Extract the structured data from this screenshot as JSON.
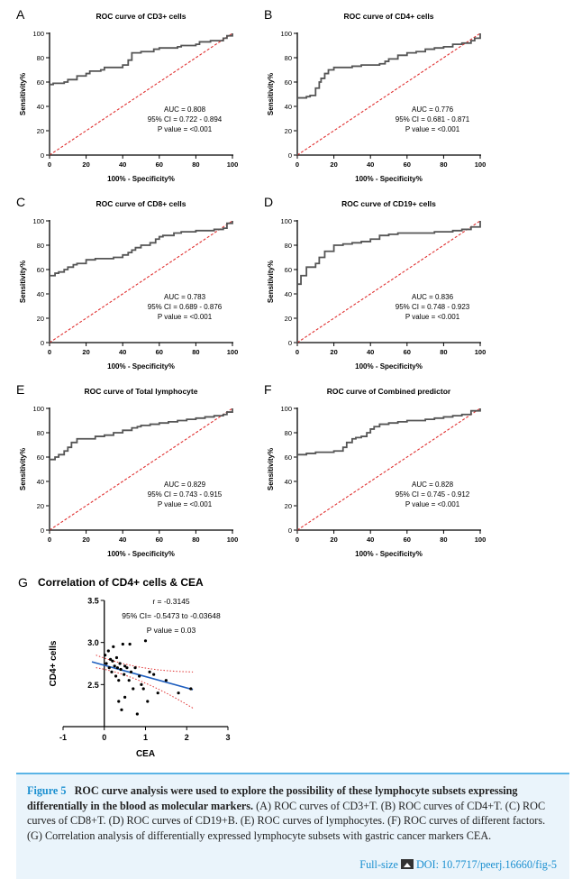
{
  "figure": {
    "panels": [
      {
        "letter": "A",
        "title": "ROC curve of CD3+ cells",
        "auc": "AUC = 0.808",
        "ci": "95% CI = 0.722 - 0.894",
        "p": "P value = <0.001"
      },
      {
        "letter": "B",
        "title": "ROC curve of CD4+ cells",
        "auc": "AUC = 0.776",
        "ci": "95% CI = 0.681 - 0.871",
        "p": "P value = <0.001"
      },
      {
        "letter": "C",
        "title": "ROC curve of CD8+ cells",
        "auc": "AUC = 0.783",
        "ci": "95% CI = 0.689 - 0.876",
        "p": "P value = <0.001"
      },
      {
        "letter": "D",
        "title": "ROC curve of CD19+ cells",
        "auc": "AUC = 0.836",
        "ci": "95% CI = 0.748 - 0.923",
        "p": "P value = <0.001"
      },
      {
        "letter": "E",
        "title": "ROC curve of Total lymphocyte",
        "auc": "AUC = 0.829",
        "ci": "95% CI = 0.743 - 0.915",
        "p": "P value = <0.001"
      },
      {
        "letter": "F",
        "title": "ROC curve of Combined predictor",
        "auc": "AUC = 0.828",
        "ci": "95% CI = 0.745 - 0.912",
        "p": "P value = <0.001"
      }
    ],
    "roc_xlabel": "100% - Specificity%",
    "roc_ylabel": "Sensitivity%",
    "g_panel": {
      "letter": "G",
      "title": "Correlation of CD4+ cells & CEA",
      "xlabel": "CEA",
      "ylabel": "CD4+ cells",
      "r": "r = -0.3145",
      "ci": "95% CI= -0.5473 to -0.03648",
      "p": "P value = 0.03"
    }
  },
  "caption": {
    "fig_num": "Figure 5",
    "title": "ROC curve analysis were used to explore the possibility of these lymphocyte subsets expressing differentially in the blood as molecular markers.",
    "body": "(A) ROC curves of CD3+T. (B) ROC curves of CD4+T. (C) ROC curves of CD8+T. (D) ROC curves of CD19+B. (E) ROC curves of lymphocytes. (F) ROC curves of different factors. (G) Correlation analysis of differentially expressed lymphocyte subsets with gastric cancer markers CEA.",
    "fullsize": "Full-size",
    "doi": "DOI: 10.7717/peerj.16660/fig-5"
  },
  "chart_data": [
    {
      "type": "line",
      "title": "ROC curve of CD3+ cells",
      "xlabel": "100% - Specificity%",
      "ylabel": "Sensitivity%",
      "xlim": [
        0,
        100
      ],
      "ylim": [
        0,
        100
      ],
      "ticks": [
        0,
        20,
        40,
        60,
        80,
        100
      ],
      "series": [
        {
          "x": [
            0,
            0,
            2,
            8,
            10,
            14,
            15,
            20,
            22,
            28,
            30,
            40,
            43,
            45,
            50,
            55,
            57,
            60,
            70,
            72,
            80,
            82,
            88,
            95,
            97,
            100
          ],
          "y": [
            0,
            58,
            59,
            60,
            62,
            62,
            65,
            67,
            69,
            70,
            72,
            74,
            78,
            84,
            85,
            85,
            87,
            88,
            89,
            90,
            91,
            93,
            94,
            96,
            98,
            100
          ]
        }
      ]
    },
    {
      "type": "line",
      "title": "ROC curve of CD4+ cells",
      "xlabel": "100% - Specificity%",
      "ylabel": "Sensitivity%",
      "xlim": [
        0,
        100
      ],
      "ylim": [
        0,
        100
      ],
      "ticks": [
        0,
        20,
        40,
        60,
        80,
        100
      ],
      "series": [
        {
          "x": [
            0,
            0,
            5,
            7,
            10,
            12,
            13,
            15,
            17,
            20,
            30,
            35,
            45,
            48,
            50,
            55,
            60,
            65,
            70,
            75,
            80,
            85,
            90,
            95,
            97,
            100
          ],
          "y": [
            0,
            47,
            48,
            49,
            55,
            60,
            63,
            67,
            70,
            72,
            73,
            74,
            75,
            77,
            79,
            82,
            84,
            85,
            87,
            88,
            89,
            91,
            92,
            94,
            96,
            100
          ]
        }
      ]
    },
    {
      "type": "line",
      "title": "ROC curve of CD8+ cells",
      "xlabel": "100% - Specificity%",
      "ylabel": "Sensitivity%",
      "xlim": [
        0,
        100
      ],
      "ylim": [
        0,
        100
      ],
      "ticks": [
        0,
        20,
        40,
        60,
        80,
        100
      ],
      "series": [
        {
          "x": [
            0,
            0,
            3,
            5,
            8,
            10,
            13,
            15,
            20,
            25,
            35,
            40,
            43,
            45,
            47,
            50,
            55,
            58,
            60,
            62,
            68,
            72,
            80,
            90,
            95,
            97,
            100
          ],
          "y": [
            0,
            55,
            57,
            58,
            60,
            62,
            64,
            65,
            68,
            69,
            70,
            72,
            74,
            76,
            78,
            80,
            82,
            85,
            87,
            88,
            90,
            91,
            92,
            93,
            94,
            98,
            100
          ]
        }
      ]
    },
    {
      "type": "line",
      "title": "ROC curve of CD19+ cells",
      "xlabel": "100% - Specificity%",
      "ylabel": "Sensitivity%",
      "xlim": [
        0,
        100
      ],
      "ylim": [
        0,
        100
      ],
      "ticks": [
        0,
        20,
        40,
        60,
        80,
        100
      ],
      "series": [
        {
          "x": [
            0,
            0,
            2,
            5,
            10,
            12,
            15,
            20,
            25,
            30,
            35,
            40,
            45,
            50,
            55,
            60,
            65,
            70,
            75,
            80,
            85,
            90,
            95,
            100
          ],
          "y": [
            0,
            48,
            55,
            62,
            65,
            70,
            75,
            80,
            81,
            82,
            83,
            85,
            88,
            89,
            90,
            90,
            90,
            90,
            91,
            91,
            92,
            93,
            95,
            100
          ]
        }
      ]
    },
    {
      "type": "line",
      "title": "ROC curve of Total lymphocyte",
      "xlabel": "100% - Specificity%",
      "ylabel": "Sensitivity%",
      "xlim": [
        0,
        100
      ],
      "ylim": [
        0,
        100
      ],
      "ticks": [
        0,
        20,
        40,
        60,
        80,
        100
      ],
      "series": [
        {
          "x": [
            0,
            0,
            3,
            5,
            8,
            10,
            12,
            15,
            25,
            30,
            35,
            40,
            45,
            48,
            50,
            55,
            60,
            65,
            70,
            75,
            80,
            85,
            90,
            95,
            97,
            100
          ],
          "y": [
            0,
            58,
            60,
            62,
            65,
            68,
            72,
            75,
            77,
            78,
            80,
            82,
            84,
            85,
            86,
            87,
            88,
            89,
            90,
            91,
            92,
            93,
            94,
            95,
            97,
            100
          ]
        }
      ]
    },
    {
      "type": "line",
      "title": "ROC curve of Combined predictor",
      "xlabel": "100% - Specificity%",
      "ylabel": "Sensitivity%",
      "xlim": [
        0,
        100
      ],
      "ylim": [
        0,
        100
      ],
      "ticks": [
        0,
        20,
        40,
        60,
        80,
        100
      ],
      "series": [
        {
          "x": [
            0,
            0,
            5,
            10,
            15,
            20,
            25,
            27,
            30,
            32,
            35,
            38,
            40,
            42,
            45,
            50,
            55,
            60,
            65,
            70,
            75,
            80,
            85,
            90,
            95,
            100
          ],
          "y": [
            0,
            62,
            63,
            64,
            64,
            65,
            68,
            72,
            75,
            76,
            77,
            80,
            83,
            85,
            87,
            88,
            89,
            90,
            90,
            91,
            92,
            93,
            94,
            95,
            98,
            100
          ]
        }
      ]
    },
    {
      "type": "scatter",
      "title": "Correlation of CD4+ cells & CEA",
      "xlabel": "CEA",
      "ylabel": "CD4+ cells",
      "xlim": [
        -1,
        3
      ],
      "ylim": [
        2.0,
        3.5
      ],
      "xticks": [
        -1,
        0,
        1,
        2,
        3
      ],
      "yticks": [
        2.5,
        3.0,
        3.5
      ],
      "series": [
        {
          "x": [
            0.02,
            0.05,
            0.1,
            0.12,
            0.15,
            0.18,
            0.2,
            0.22,
            0.25,
            0.28,
            0.3,
            0.32,
            0.35,
            0.35,
            0.38,
            0.4,
            0.42,
            0.45,
            0.48,
            0.5,
            0.5,
            0.55,
            0.6,
            0.62,
            0.65,
            0.7,
            0.75,
            0.8,
            0.85,
            0.9,
            0.95,
            1.0,
            1.05,
            1.1,
            1.2,
            1.3,
            1.5,
            1.8,
            2.1
          ],
          "y": [
            2.85,
            2.75,
            2.9,
            2.7,
            2.8,
            2.65,
            2.78,
            2.95,
            2.72,
            2.6,
            2.82,
            2.7,
            2.55,
            2.3,
            2.75,
            2.68,
            2.2,
            2.98,
            2.62,
            2.72,
            2.35,
            2.7,
            2.55,
            2.98,
            2.65,
            2.45,
            2.7,
            2.15,
            2.6,
            2.5,
            2.45,
            3.02,
            2.3,
            2.65,
            2.62,
            2.4,
            2.55,
            2.4,
            2.45
          ]
        }
      ],
      "fit": {
        "x": [
          -0.3,
          2.15
        ],
        "y": [
          2.77,
          2.44
        ]
      }
    }
  ]
}
